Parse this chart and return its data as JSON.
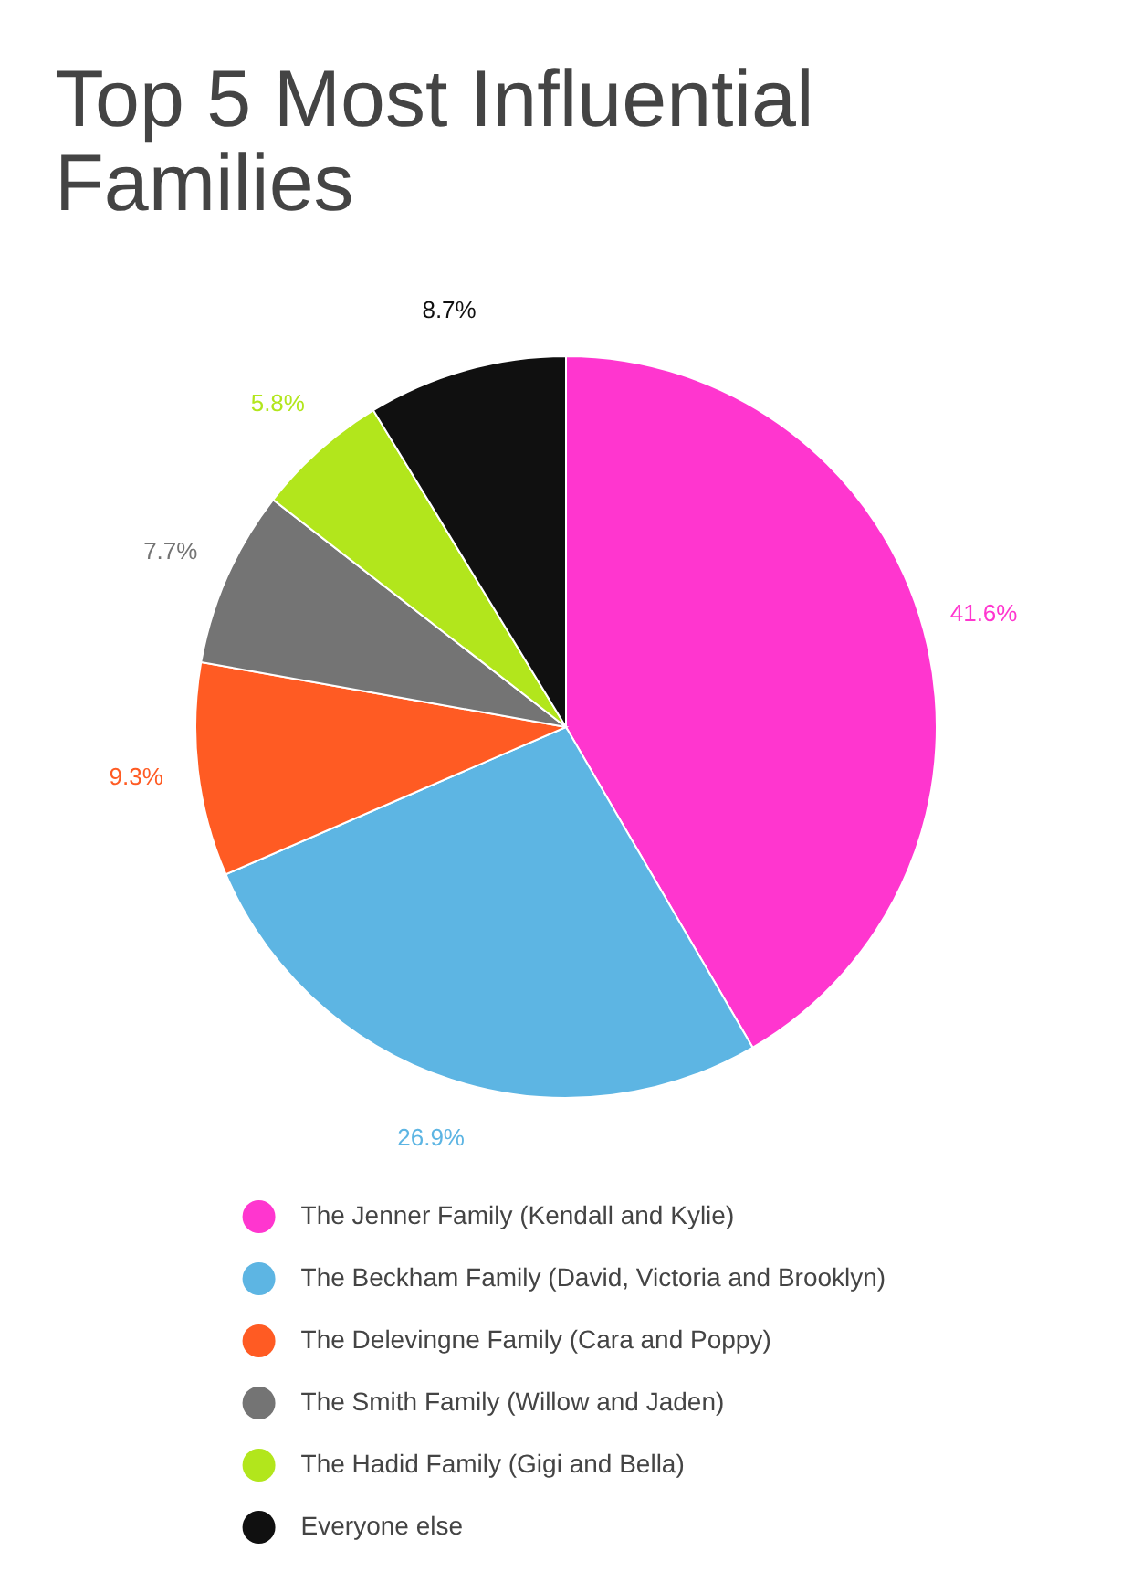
{
  "chart_data": {
    "type": "pie",
    "title": "Top 5 Most Influential Families",
    "categories": [
      "The Jenner Family (Kendall and Kylie)",
      "The Beckham Family (David, Victoria and Brooklyn)",
      "The Delevingne Family (Cara and Poppy)",
      "The Smith Family (Willow and Jaden)",
      "The Hadid Family (Gigi and Bella)",
      "Everyone else"
    ],
    "values": [
      41.6,
      26.9,
      9.3,
      7.7,
      5.8,
      8.7
    ],
    "colors": [
      "#ff36cf",
      "#5db5e3",
      "#ff5b23",
      "#747474",
      "#b2e61c",
      "#101010"
    ],
    "value_labels": [
      "41.6%",
      "26.9%",
      "9.3%",
      "7.7%",
      "5.8%",
      "8.7%"
    ],
    "legend": "bottom"
  }
}
